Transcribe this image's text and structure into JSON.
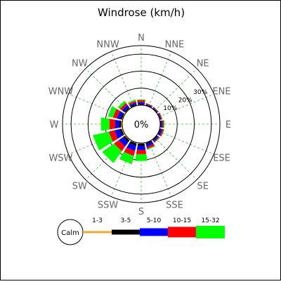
{
  "chart_data": {
    "type": "windrose",
    "title": "Windrose (km/h)",
    "center_label": "0%",
    "calm_label": "Calm",
    "directions": [
      "N",
      "NNE",
      "NE",
      "ENE",
      "E",
      "ESE",
      "SE",
      "SSE",
      "S",
      "SSW",
      "SW",
      "WSW",
      "W",
      "WNW",
      "NW",
      "NNW"
    ],
    "rings": [
      {
        "value": 10,
        "label": "10%"
      },
      {
        "value": 20,
        "label": "20%"
      },
      {
        "value": 30,
        "label": "30%"
      }
    ],
    "series": [
      {
        "name": "1-3",
        "color": "#f5a623",
        "values": [
          0.3,
          0.2,
          0.2,
          0.2,
          0.2,
          0.3,
          0.3,
          0.4,
          0.5,
          0.6,
          0.7,
          0.8,
          0.8,
          0.6,
          0.5,
          0.4
        ]
      },
      {
        "name": "3-5",
        "color": "#000000",
        "values": [
          0.6,
          0.3,
          0.3,
          0.3,
          0.4,
          0.5,
          0.5,
          0.8,
          1.3,
          1.5,
          1.3,
          1.2,
          1.0,
          0.9,
          0.8,
          0.6
        ]
      },
      {
        "name": "5-10",
        "color": "#0000ff",
        "values": [
          1.0,
          0.5,
          0.4,
          0.5,
          0.8,
          1.0,
          0.8,
          1.5,
          2.5,
          3.0,
          3.0,
          3.0,
          2.5,
          2.0,
          1.5,
          1.0
        ]
      },
      {
        "name": "10-15",
        "color": "#ff0000",
        "values": [
          1.2,
          0.5,
          0.5,
          0.6,
          0.8,
          0.8,
          0.6,
          1.2,
          2.5,
          3.0,
          3.5,
          3.5,
          3.5,
          2.5,
          1.5,
          1.0
        ]
      },
      {
        "name": "15-32",
        "color": "#00ff00",
        "values": [
          0.5,
          0.2,
          0.2,
          0.2,
          0.5,
          0.3,
          0.3,
          0.5,
          4.0,
          5.0,
          8.5,
          9.5,
          5.0,
          3.0,
          1.5,
          0.8
        ]
      }
    ]
  }
}
